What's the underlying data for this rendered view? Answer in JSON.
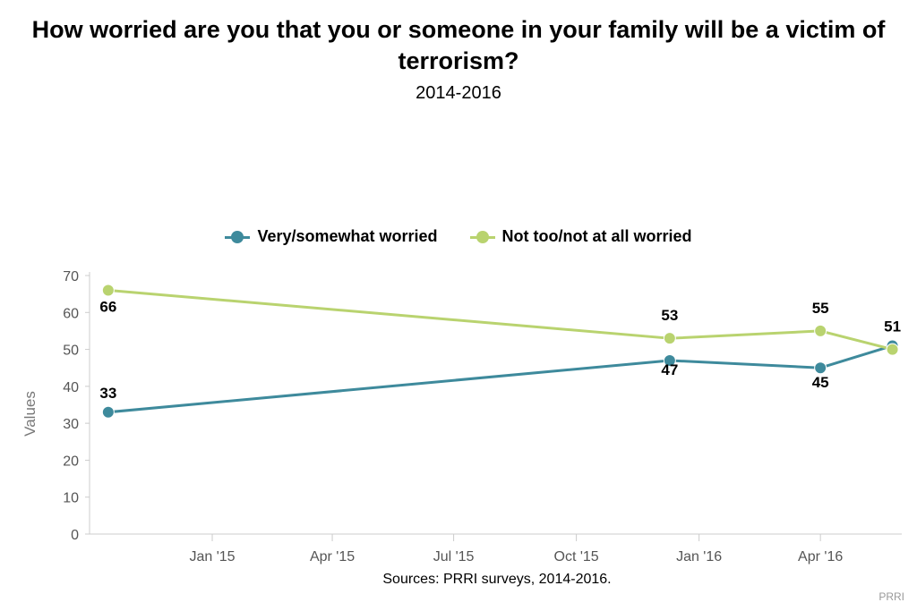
{
  "title": "How worried are you that you or someone in your family will be a victim of terrorism?",
  "subtitle": "2014-2016",
  "source": "Sources: PRRI surveys, 2014-2016.",
  "credit": "PRRI",
  "colors": {
    "worried": "#3e8a9c",
    "not_worried": "#b9d36f",
    "axis": "#cccccc"
  },
  "chart_data": {
    "type": "line",
    "xlabel": "",
    "ylabel": "Values",
    "ylim": [
      0,
      70
    ],
    "yticks": [
      0,
      10,
      20,
      30,
      40,
      50,
      60,
      70
    ],
    "xlim": [
      "2014-10-01",
      "2016-06-01"
    ],
    "xticks": [
      {
        "date": "2015-01-01",
        "label": "Jan '15"
      },
      {
        "date": "2015-04-01",
        "label": "Apr '15"
      },
      {
        "date": "2015-07-01",
        "label": "Jul '15"
      },
      {
        "date": "2015-10-01",
        "label": "Oct '15"
      },
      {
        "date": "2016-01-01",
        "label": "Jan '16"
      },
      {
        "date": "2016-04-01",
        "label": "Apr '16"
      }
    ],
    "legend_position": "top-center",
    "grid": false,
    "series": [
      {
        "name": "Very/somewhat worried",
        "color": "#3e8a9c",
        "points": [
          {
            "x": "2014-10-15",
            "y": 33,
            "label": "33"
          },
          {
            "x": "2015-12-10",
            "y": 47,
            "label": "47"
          },
          {
            "x": "2016-04-01",
            "y": 45,
            "label": "45"
          },
          {
            "x": "2016-05-25",
            "y": 51,
            "label": "51"
          }
        ]
      },
      {
        "name": "Not too/not at all worried",
        "color": "#b9d36f",
        "points": [
          {
            "x": "2014-10-15",
            "y": 66,
            "label": "66"
          },
          {
            "x": "2015-12-10",
            "y": 53,
            "label": "53"
          },
          {
            "x": "2016-04-01",
            "y": 55,
            "label": "55"
          },
          {
            "x": "2016-05-25",
            "y": 50,
            "label": ""
          }
        ]
      }
    ]
  }
}
